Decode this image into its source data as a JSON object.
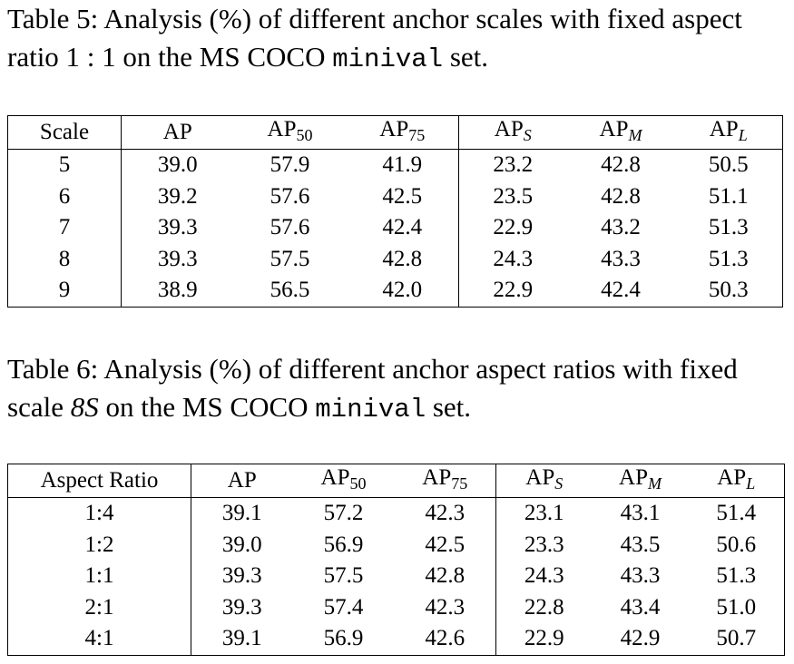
{
  "table5": {
    "caption": {
      "text": "Table 5: Analysis (%) of different anchor scales with fixed aspect ratio 1 : 1 on the MS COCO ",
      "code": "minival",
      "end": " set."
    },
    "header": [
      {
        "text": "Scale"
      },
      {
        "text": "AP"
      },
      {
        "text": "AP",
        "sub": "50"
      },
      {
        "text": "AP",
        "sub": "75"
      },
      {
        "text": "AP",
        "sub": "S"
      },
      {
        "text": "AP",
        "sub": "M"
      },
      {
        "text": "AP",
        "sub": "L"
      }
    ],
    "rows": [
      [
        "5",
        "39.0",
        "57.9",
        "41.9",
        "23.2",
        "42.8",
        "50.5"
      ],
      [
        "6",
        "39.2",
        "57.6",
        "42.5",
        "23.5",
        "42.8",
        "51.1"
      ],
      [
        "7",
        "39.3",
        "57.6",
        "42.4",
        "22.9",
        "43.2",
        "51.3"
      ],
      [
        "8",
        "39.3",
        "57.5",
        "42.8",
        "24.3",
        "43.3",
        "51.3"
      ],
      [
        "9",
        "38.9",
        "56.5",
        "42.0",
        "22.9",
        "42.4",
        "50.3"
      ]
    ]
  },
  "table6": {
    "caption": {
      "text": "Table 6: Analysis (%) of different anchor aspect ratios with fixed scale ",
      "math": "8S",
      "text2": " on the MS COCO ",
      "code": "minival",
      "end": " set."
    },
    "header": [
      {
        "text": "Aspect Ratio"
      },
      {
        "text": "AP"
      },
      {
        "text": "AP",
        "sub": "50"
      },
      {
        "text": "AP",
        "sub": "75"
      },
      {
        "text": "AP",
        "sub": "S"
      },
      {
        "text": "AP",
        "sub": "M"
      },
      {
        "text": "AP",
        "sub": "L"
      }
    ],
    "rows": [
      [
        "1:4",
        "39.1",
        "57.2",
        "42.3",
        "23.1",
        "43.1",
        "51.4"
      ],
      [
        "1:2",
        "39.0",
        "56.9",
        "42.5",
        "23.3",
        "43.5",
        "50.6"
      ],
      [
        "1:1",
        "39.3",
        "57.5",
        "42.8",
        "24.3",
        "43.3",
        "51.3"
      ],
      [
        "2:1",
        "39.3",
        "57.4",
        "42.3",
        "22.8",
        "43.4",
        "51.0"
      ],
      [
        "4:1",
        "39.1",
        "56.9",
        "42.6",
        "22.9",
        "42.9",
        "50.7"
      ]
    ]
  }
}
